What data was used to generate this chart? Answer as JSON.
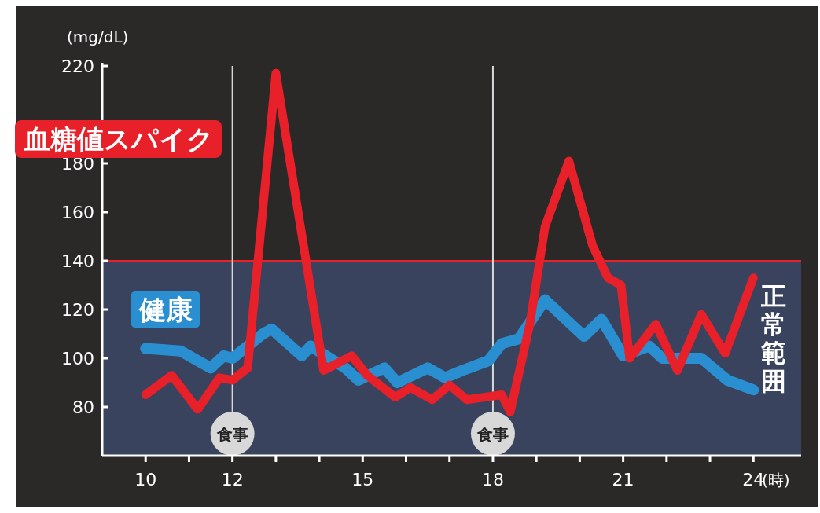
{
  "chart_data": {
    "type": "line",
    "xlabel": "(時)",
    "ylabel": "(mg/dL)",
    "xlim": [
      9,
      25.1
    ],
    "ylim": [
      60,
      220
    ],
    "xticks": [
      10,
      {
        "value": 11,
        "label": null
      },
      12,
      {
        "value": 13,
        "label": null
      },
      {
        "value": 14,
        "label": null
      },
      15,
      {
        "value": 16,
        "label": null
      },
      {
        "value": 17,
        "label": null
      },
      18,
      {
        "value": 19,
        "label": null
      },
      {
        "value": 20,
        "label": null
      },
      21,
      {
        "value": 22,
        "label": null
      },
      {
        "value": 23,
        "label": null
      },
      24
    ],
    "yticks": [
      80,
      100,
      120,
      140,
      160,
      180,
      220
    ],
    "series": [
      {
        "name": "健康",
        "color": "#2a8fd0",
        "x": [
          10,
          10.8,
          11.5,
          11.8,
          12,
          12.7,
          12.9,
          13.6,
          13.8,
          14.6,
          14.9,
          15.5,
          15.8,
          16.5,
          16.9,
          17.3,
          17.9,
          18.2,
          18.6,
          19.2,
          20.1,
          20.5,
          21,
          21.6,
          21.9,
          22.8,
          23.4,
          24
        ],
        "values": [
          104,
          103,
          96,
          101,
          100,
          110,
          112,
          101,
          105,
          96,
          91,
          96,
          90,
          96,
          92,
          95,
          99,
          106,
          108,
          124,
          109,
          116,
          101,
          105,
          100,
          100,
          91,
          87
        ]
      },
      {
        "name": "血糖値スパイク",
        "color": "#e8202a",
        "x": [
          10,
          10.6,
          11.2,
          11.7,
          12,
          12.35,
          13,
          14.1,
          14.75,
          15.1,
          15.75,
          16.1,
          16.6,
          17,
          17.4,
          18.2,
          18.4,
          18.85,
          19.2,
          19.75,
          20.3,
          20.65,
          20.95,
          21.15,
          21.75,
          22.25,
          22.8,
          23.35,
          24
        ],
        "values": [
          85,
          93,
          79,
          92,
          91,
          96,
          217,
          95,
          101,
          93,
          84,
          88,
          83,
          89,
          83,
          85,
          78,
          114,
          154,
          181,
          146,
          133,
          130,
          100,
          114,
          95,
          118,
          102,
          133
        ]
      }
    ],
    "bands": [
      {
        "axis": "y",
        "from": 60,
        "to": 140,
        "label": "正常範囲",
        "color": "#3c4866"
      }
    ],
    "ref_lines": [
      {
        "axis": "y",
        "value": 140,
        "label": null,
        "color": "#e8202a"
      },
      {
        "axis": "x",
        "value": 12,
        "label": "食事",
        "color": "#d8d8d8"
      },
      {
        "axis": "x",
        "value": 18,
        "label": "食事",
        "color": "#d8d8d8"
      }
    ]
  }
}
